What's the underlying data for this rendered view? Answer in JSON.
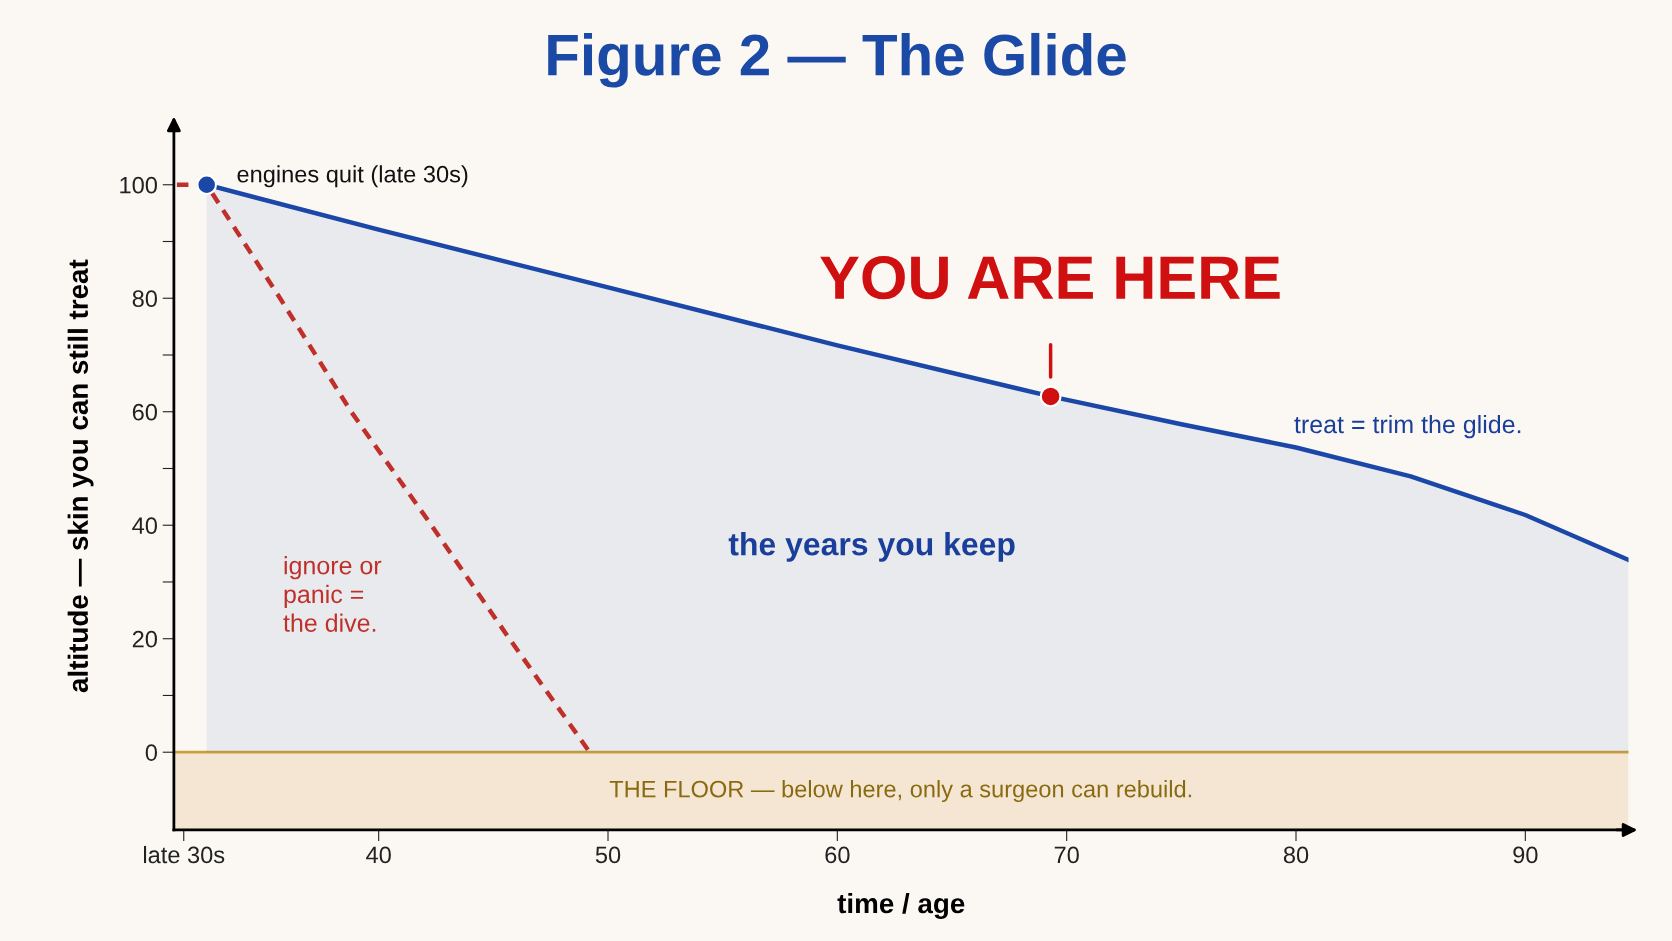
{
  "chart_data": {
    "type": "line",
    "title": "Figure 2 — The Glide",
    "xlabel": "time / age",
    "ylabel": "altitude — skin you can still treat",
    "xlim": [
      31.07,
      94.5
    ],
    "xticks": [
      {
        "value": 31.5,
        "label": "late 30s"
      },
      40,
      50,
      60,
      70,
      80,
      90
    ],
    "ylim": [
      -13.7,
      111
    ],
    "yticks": [
      0,
      {
        "value": 10,
        "label": null
      },
      20,
      {
        "value": 30,
        "label": null
      },
      40,
      {
        "value": 50,
        "label": null
      },
      60,
      {
        "value": 70,
        "label": null
      },
      80,
      {
        "value": 90,
        "label": null
      },
      100
    ],
    "series": [
      {
        "type": "area",
        "color": "#1a47a8",
        "x": [
          32.5,
          40,
          50,
          60,
          69.3,
          75,
          80,
          85,
          90,
          94.5
        ],
        "values": [
          100,
          92.1,
          81.9,
          71.7,
          62.7,
          57.8,
          53.7,
          48.6,
          41.8,
          33.9
        ]
      },
      {
        "color": "#c0302a",
        "line_style": "dashed",
        "x": [
          31.2,
          32.5,
          35.7,
          38.8,
          42.3,
          45.7,
          49.2
        ],
        "values": [
          100,
          100,
          80,
          60,
          40,
          20,
          0
        ]
      },
      {
        "type": "scatter",
        "marker": "circle",
        "color": "#1a47a8",
        "x": [
          32.5
        ],
        "values": [
          100
        ]
      },
      {
        "type": "scatter",
        "marker": "circle",
        "color": "#d01010",
        "x": [
          69.3
        ],
        "values": [
          62.7
        ]
      }
    ],
    "bands": [
      {
        "axis": "y",
        "from": -13.7,
        "to": 0,
        "label": "THE FLOOR — below here, only a surgeon can rebuild.",
        "color": "#f4e6d2"
      }
    ],
    "ref_lines": [
      {
        "axis": "y",
        "value": 0,
        "color": "#c9a040"
      }
    ],
    "annotations": [
      {
        "text": "engines quit (late 30s)",
        "x": 32.5,
        "y": 100
      },
      {
        "text": "YOU ARE HERE",
        "x": 69.3,
        "y": 62.7
      },
      "treat = trim the glide.",
      "ignore or\npanic =\nthe dive.",
      "the years you keep"
    ],
    "grid": false,
    "marker": "none"
  }
}
